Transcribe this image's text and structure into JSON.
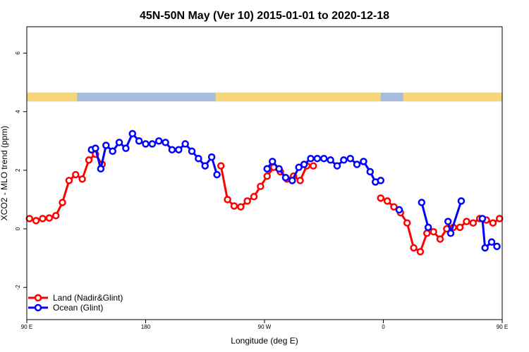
{
  "chart_data": {
    "type": "line",
    "title": "45N-50N May (Ver 10)   2015-01-01 to 2020-12-18",
    "xlabel": "Longitude (deg E)",
    "ylabel": "XCO2 - MLO trend (ppm)",
    "xlim": [
      90,
      450
    ],
    "ylim": [
      -3.1,
      6.9
    ],
    "x_ticks": [
      {
        "value": 90,
        "label": "90 E"
      },
      {
        "value": 180,
        "label": "180"
      },
      {
        "value": 270,
        "label": "90 W"
      },
      {
        "value": 360,
        "label": "0"
      },
      {
        "value": 450,
        "label": "90 E"
      },
      {
        "value": 540,
        "label": "180"
      }
    ],
    "y_ticks": [
      {
        "value": -2,
        "label": "-2"
      },
      {
        "value": 0,
        "label": "0"
      },
      {
        "value": 2,
        "label": "2"
      },
      {
        "value": 4,
        "label": "4"
      },
      {
        "value": 6,
        "label": "6"
      }
    ],
    "legend_position": "bottom-left",
    "land_ocean_strip": {
      "y_range": [
        4.35,
        4.65
      ],
      "land_color": "#f5d77a",
      "ocean_color": "#a8bce0"
    },
    "series": [
      {
        "name": "Land (Nadir&Glint)",
        "color": "#ff0000",
        "points": [
          [
            [
              92,
              0.35
            ],
            [
              97,
              0.28
            ],
            [
              102,
              0.35
            ],
            [
              107,
              0.37
            ],
            [
              112,
              0.45
            ],
            [
              117,
              0.9
            ],
            [
              122,
              1.65
            ],
            [
              127,
              1.85
            ],
            [
              132,
              1.7
            ],
            [
              137,
              2.35
            ],
            [
              142,
              2.55
            ],
            [
              147,
              2.2
            ]
          ],
          [
            [
              237,
              2.15
            ],
            [
              242,
              1.0
            ],
            [
              247,
              0.78
            ],
            [
              252,
              0.75
            ],
            [
              257,
              0.95
            ],
            [
              262,
              1.1
            ],
            [
              267,
              1.45
            ],
            [
              272,
              1.8
            ],
            [
              277,
              2.1
            ],
            [
              282,
              1.95
            ],
            [
              287,
              1.7
            ],
            [
              292,
              1.8
            ],
            [
              297,
              1.65
            ],
            [
              302,
              2.15
            ],
            [
              307,
              2.15
            ]
          ],
          [
            [
              358,
              1.05
            ],
            [
              363,
              0.95
            ],
            [
              368,
              0.75
            ],
            [
              373,
              0.55
            ],
            [
              378,
              0.2
            ],
            [
              383,
              -0.65
            ],
            [
              388,
              -0.78
            ],
            [
              393,
              -0.15
            ],
            [
              398,
              -0.1
            ],
            [
              403,
              -0.35
            ],
            [
              408,
              0.0
            ],
            [
              413,
              0.05
            ],
            [
              418,
              0.05
            ],
            [
              423,
              0.25
            ],
            [
              428,
              0.2
            ],
            [
              433,
              0.35
            ],
            [
              438,
              0.3
            ],
            [
              443,
              0.2
            ],
            [
              448,
              0.35
            ],
            [
              453,
              0.35
            ],
            [
              458,
              0.25
            ],
            [
              463,
              0.35
            ],
            [
              468,
              0.35
            ],
            [
              473,
              0.45
            ],
            [
              478,
              0.9
            ],
            [
              483,
              1.65
            ],
            [
              488,
              1.85
            ],
            [
              493,
              1.7
            ],
            [
              498,
              2.35
            ],
            [
              503,
              2.55
            ],
            [
              508,
              2.2
            ]
          ]
        ]
      },
      {
        "name": "Ocean (Glint)",
        "color": "#0000ff",
        "points": [
          [
            [
              139,
              2.7
            ],
            [
              142,
              2.75
            ],
            [
              146,
              2.05
            ],
            [
              150,
              2.85
            ],
            [
              155,
              2.65
            ],
            [
              160,
              2.95
            ],
            [
              165,
              2.75
            ],
            [
              170,
              3.25
            ],
            [
              175,
              3.0
            ],
            [
              180,
              2.9
            ],
            [
              185,
              2.9
            ],
            [
              190,
              3.0
            ],
            [
              195,
              2.95
            ],
            [
              200,
              2.7
            ],
            [
              205,
              2.7
            ],
            [
              210,
              2.9
            ],
            [
              215,
              2.65
            ],
            [
              220,
              2.4
            ],
            [
              225,
              2.15
            ],
            [
              230,
              2.45
            ],
            [
              234,
              1.85
            ]
          ],
          [
            [
              272,
              2.05
            ],
            [
              276,
              2.3
            ],
            [
              281,
              2.05
            ],
            [
              286,
              1.75
            ],
            [
              291,
              1.65
            ],
            [
              296,
              2.1
            ],
            [
              300,
              2.2
            ],
            [
              305,
              2.4
            ],
            [
              310,
              2.4
            ],
            [
              315,
              2.4
            ],
            [
              320,
              2.35
            ],
            [
              325,
              2.15
            ],
            [
              330,
              2.35
            ],
            [
              335,
              2.4
            ],
            [
              340,
              2.2
            ],
            [
              345,
              2.3
            ],
            [
              350,
              1.95
            ],
            [
              354,
              1.6
            ],
            [
              358,
              1.65
            ]
          ],
          [
            [
              372,
              0.65
            ]
          ],
          [
            [
              389,
              0.9
            ],
            [
              394,
              0.05
            ]
          ],
          [
            [
              409,
              0.25
            ],
            [
              411,
              -0.15
            ],
            [
              419,
              0.95
            ]
          ],
          [
            [
              435,
              0.35
            ],
            [
              437,
              -0.65
            ],
            [
              442,
              -0.45
            ],
            [
              446,
              -0.6
            ]
          ],
          [
            [
              500,
              2.7
            ],
            [
              503,
              2.75
            ],
            [
              507,
              2.05
            ],
            [
              511,
              2.85
            ],
            [
              516,
              2.65
            ],
            [
              521,
              2.95
            ],
            [
              526,
              2.75
            ],
            [
              531,
              3.25
            ],
            [
              536,
              3.0
            ]
          ]
        ]
      }
    ]
  }
}
